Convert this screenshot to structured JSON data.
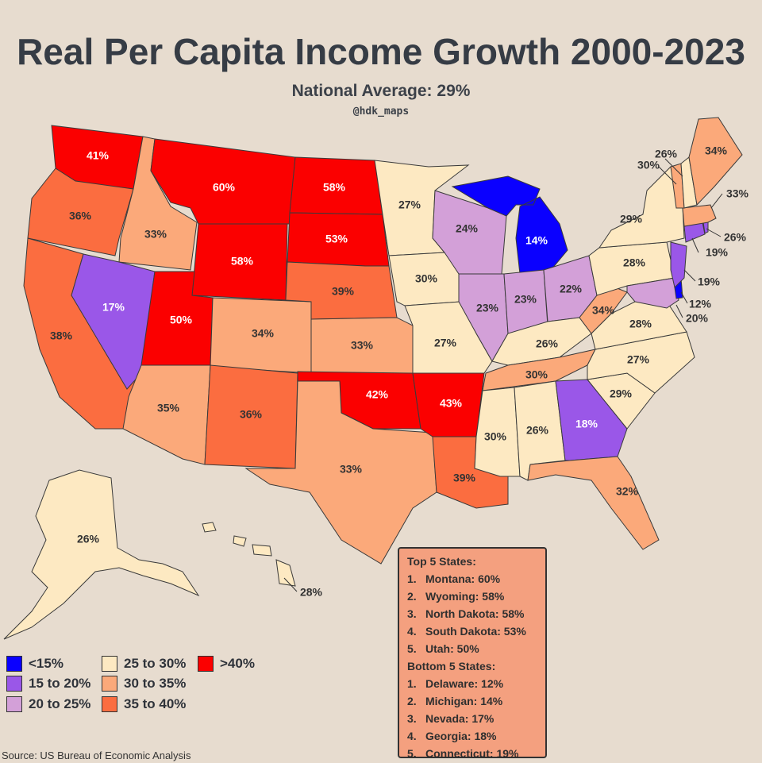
{
  "title": "Real Per Capita Income Growth 2000-2023",
  "subtitle": "National Average: 29%",
  "handle": "@hdk_maps",
  "source": "Source: US Bureau of Economic Analysis",
  "colors": {
    "lt15": "#0a00ff",
    "b15_20": "#9a57e8",
    "b20_25": "#d3a0d8",
    "b25_30": "#fde9c2",
    "b30_35": "#fba97a",
    "b35_40": "#fb6d40",
    "gt40": "#fb0000"
  },
  "legend": [
    {
      "label": "<15%",
      "color": "#0a00ff"
    },
    {
      "label": "15 to 20%",
      "color": "#9a57e8"
    },
    {
      "label": "20 to 25%",
      "color": "#d3a0d8"
    },
    {
      "label": "25 to 30%",
      "color": "#fde9c2"
    },
    {
      "label": "30 to 35%",
      "color": "#fba97a"
    },
    {
      "label": "35 to 40%",
      "color": "#fb6d40"
    },
    {
      "label": ">40%",
      "color": "#fb0000"
    }
  ],
  "states": {
    "WA": "41%",
    "OR": "36%",
    "CA": "38%",
    "ID": "33%",
    "NV": "17%",
    "MT": "60%",
    "WY": "58%",
    "UT": "50%",
    "AZ": "35%",
    "CO": "34%",
    "NM": "36%",
    "ND": "58%",
    "SD": "53%",
    "NE": "39%",
    "KS": "33%",
    "OK": "42%",
    "TX": "33%",
    "MN": "27%",
    "IA": "30%",
    "MO": "27%",
    "AR": "43%",
    "LA": "39%",
    "WI": "24%",
    "IL": "23%",
    "MI": "14%",
    "IN": "23%",
    "OH": "22%",
    "KY": "26%",
    "TN": "30%",
    "MS": "30%",
    "AL": "26%",
    "GA": "18%",
    "FL": "32%",
    "SC": "29%",
    "NC": "27%",
    "VA": "28%",
    "WV": "34%",
    "PA": "28%",
    "NY": "29%",
    "ME": "34%",
    "NH": "26%",
    "VT": "30%",
    "MA": "33%",
    "RI": "26%",
    "CT": "19%",
    "NJ": "19%",
    "DE": "12%",
    "MD": "20%",
    "AK": "26%",
    "HI": "28%"
  },
  "box": {
    "top_title": "Top 5 States:",
    "top": [
      {
        "n": "1.",
        "text": "Montana: 60%"
      },
      {
        "n": "2.",
        "text": "Wyoming: 58%"
      },
      {
        "n": "3.",
        "text": "North Dakota: 58%"
      },
      {
        "n": "4.",
        "text": "South Dakota: 53%"
      },
      {
        "n": "5.",
        "text": "Utah: 50%"
      }
    ],
    "bottom_title": "Bottom 5 States:",
    "bottom": [
      {
        "n": "1.",
        "text": "Delaware: 12%"
      },
      {
        "n": "2.",
        "text": "Michigan: 14%"
      },
      {
        "n": "3.",
        "text": "Nevada: 17%"
      },
      {
        "n": "4.",
        "text": "Georgia: 18%"
      },
      {
        "n": "5.",
        "text": "Connecticut: 19%"
      }
    ]
  }
}
